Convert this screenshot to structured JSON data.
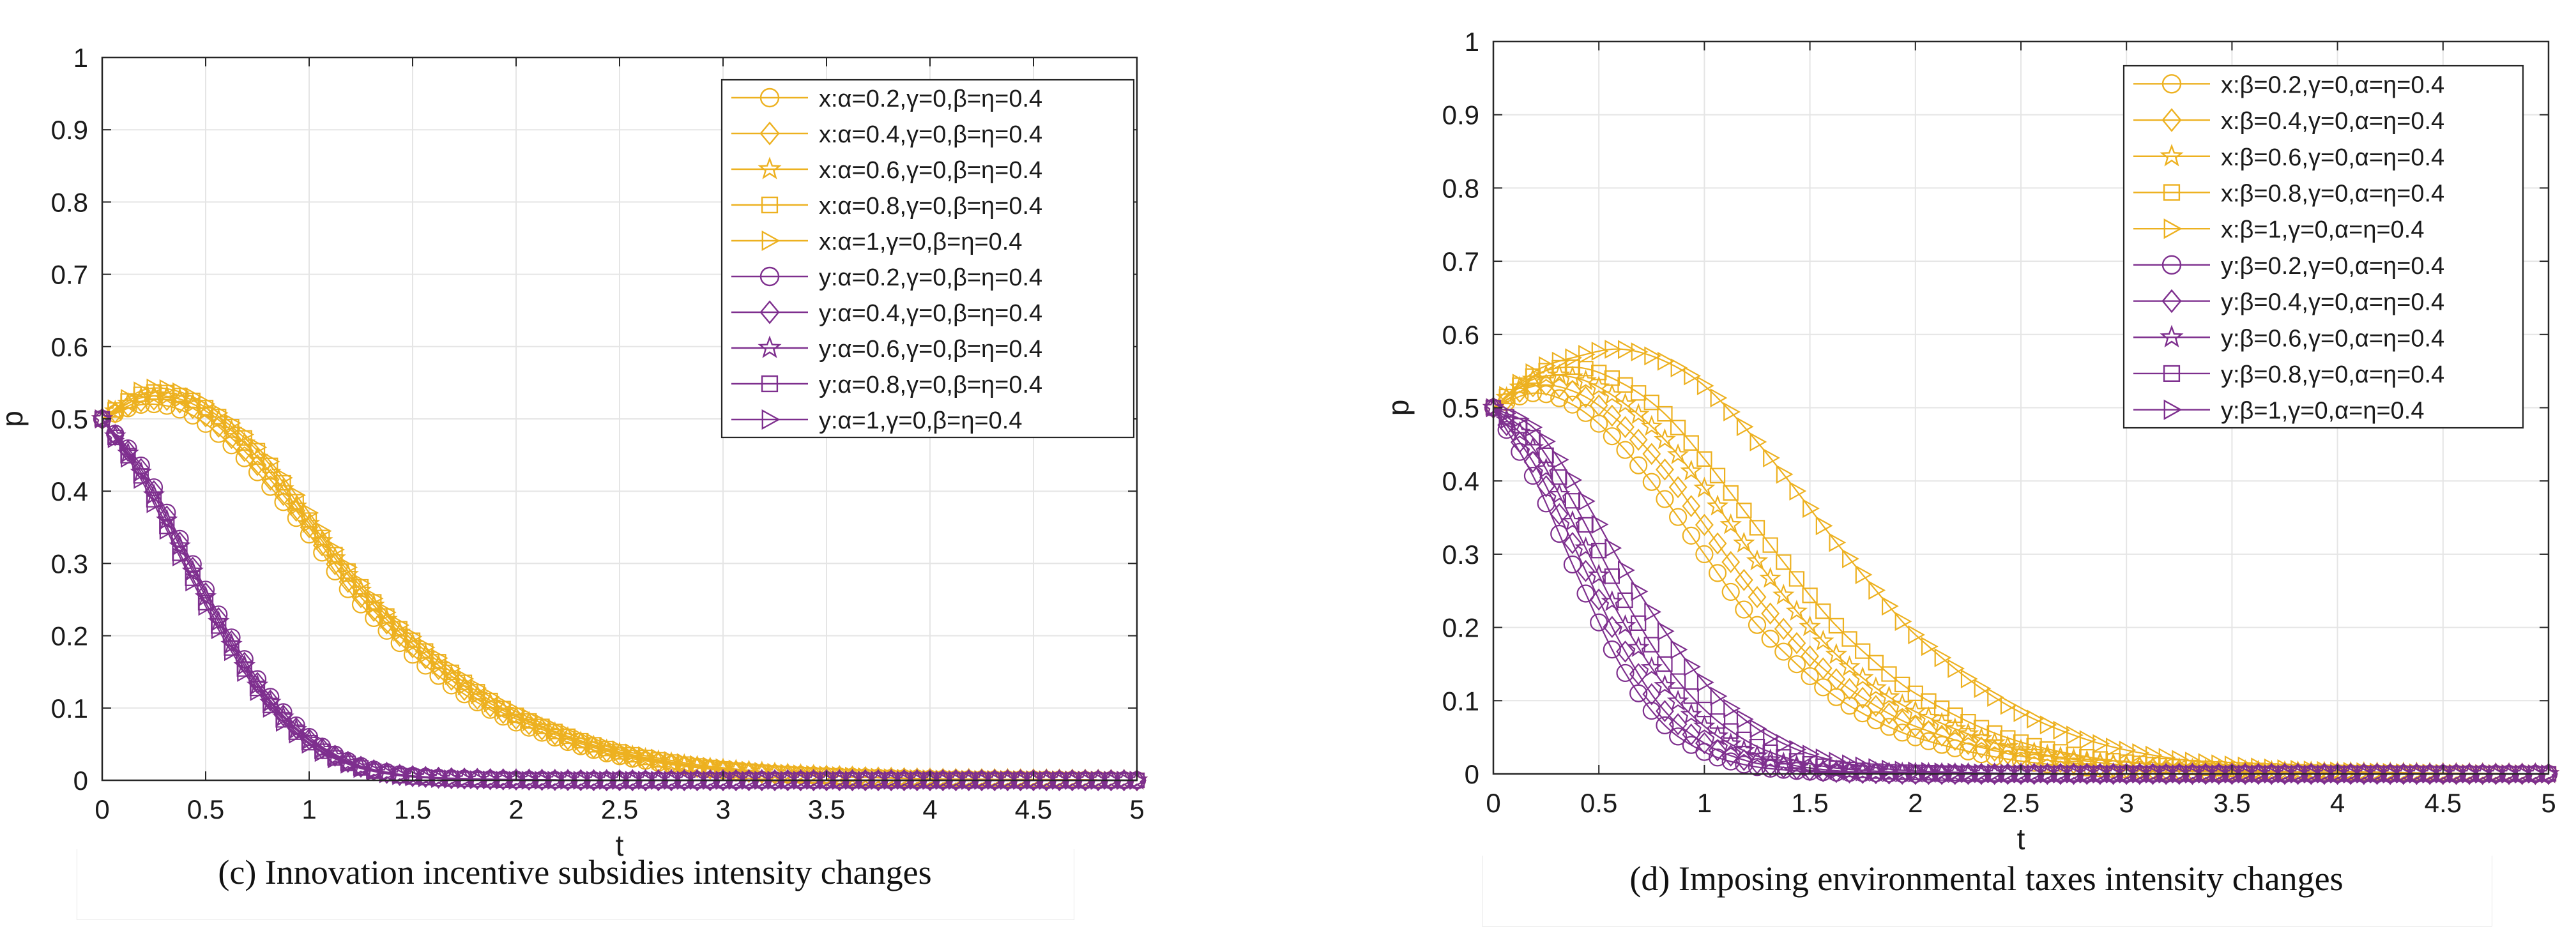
{
  "colors": {
    "x_series": "#EDB120",
    "y_series": "#7E2F8E",
    "grid": "#e5e5e5",
    "axis": "#262626"
  },
  "chart_data": [
    {
      "type": "line",
      "panel": "c",
      "caption": "(c) Innovation incentive subsidies intensity changes",
      "xlabel": "t",
      "ylabel": "p",
      "xlim": [
        0,
        5
      ],
      "ylim": [
        0,
        1
      ],
      "x_ticks": [
        "0",
        "0.5",
        "1",
        "1.5",
        "2",
        "2.5",
        "3",
        "3.5",
        "4",
        "4.5",
        "5"
      ],
      "y_ticks": [
        "0",
        "0.1",
        "0.2",
        "0.3",
        "0.4",
        "0.5",
        "0.6",
        "0.7",
        "0.8",
        "0.9",
        "1"
      ],
      "grid": true,
      "legend_position": "top-right",
      "x": [
        0,
        0.2,
        0.4,
        0.6,
        0.8,
        1.0,
        1.2,
        1.4,
        1.6,
        1.8,
        2.0,
        2.4,
        2.8,
        3.2,
        3.6,
        4.0,
        4.5,
        5.0
      ],
      "series": [
        {
          "name": "x:α=0.2,γ=0,β=η=0.4",
          "group": "x",
          "marker": "circle",
          "values": [
            0.5,
            0.52,
            0.51,
            0.47,
            0.41,
            0.34,
            0.26,
            0.2,
            0.15,
            0.11,
            0.08,
            0.04,
            0.02,
            0.01,
            0.005,
            0.002,
            0.001,
            0
          ]
        },
        {
          "name": "x:α=0.4,γ=0,β=η=0.4",
          "group": "x",
          "marker": "diamond",
          "values": [
            0.5,
            0.525,
            0.52,
            0.48,
            0.42,
            0.35,
            0.27,
            0.21,
            0.16,
            0.115,
            0.085,
            0.043,
            0.021,
            0.01,
            0.005,
            0.002,
            0.001,
            0
          ]
        },
        {
          "name": "x:α=0.6,γ=0,β=η=0.4",
          "group": "x",
          "marker": "star",
          "values": [
            0.5,
            0.53,
            0.525,
            0.49,
            0.43,
            0.355,
            0.28,
            0.215,
            0.165,
            0.12,
            0.088,
            0.045,
            0.022,
            0.011,
            0.005,
            0.002,
            0.001,
            0
          ]
        },
        {
          "name": "x:α=0.8,γ=0,β=η=0.4",
          "group": "x",
          "marker": "square",
          "values": [
            0.5,
            0.535,
            0.53,
            0.495,
            0.44,
            0.36,
            0.285,
            0.22,
            0.17,
            0.125,
            0.09,
            0.047,
            0.023,
            0.011,
            0.005,
            0.002,
            0.001,
            0
          ]
        },
        {
          "name": "x:α=1,γ=0,β=η=0.4",
          "group": "x",
          "marker": "triangle",
          "values": [
            0.5,
            0.54,
            0.535,
            0.5,
            0.445,
            0.37,
            0.29,
            0.225,
            0.175,
            0.13,
            0.095,
            0.05,
            0.025,
            0.012,
            0.006,
            0.002,
            0.001,
            0
          ]
        },
        {
          "name": "y:α=0.2,γ=0,β=η=0.4",
          "group": "y",
          "marker": "circle",
          "values": [
            0.5,
            0.43,
            0.32,
            0.21,
            0.12,
            0.06,
            0.025,
            0.01,
            0.004,
            0.002,
            0.001,
            0,
            0,
            0,
            0,
            0,
            0,
            0
          ]
        },
        {
          "name": "y:α=0.4,γ=0,β=η=0.4",
          "group": "y",
          "marker": "diamond",
          "values": [
            0.5,
            0.425,
            0.315,
            0.205,
            0.115,
            0.057,
            0.024,
            0.009,
            0.004,
            0.002,
            0.001,
            0,
            0,
            0,
            0,
            0,
            0,
            0
          ]
        },
        {
          "name": "y:α=0.6,γ=0,β=η=0.4",
          "group": "y",
          "marker": "star",
          "values": [
            0.5,
            0.42,
            0.31,
            0.2,
            0.112,
            0.055,
            0.023,
            0.009,
            0.003,
            0.001,
            0.001,
            0,
            0,
            0,
            0,
            0,
            0,
            0
          ]
        },
        {
          "name": "y:α=0.8,γ=0,β=η=0.4",
          "group": "y",
          "marker": "square",
          "values": [
            0.5,
            0.415,
            0.3,
            0.195,
            0.108,
            0.052,
            0.022,
            0.008,
            0.003,
            0.001,
            0,
            0,
            0,
            0,
            0,
            0,
            0,
            0
          ]
        },
        {
          "name": "y:α=1,γ=0,β=η=0.4",
          "group": "y",
          "marker": "triangle",
          "values": [
            0.5,
            0.41,
            0.295,
            0.19,
            0.104,
            0.05,
            0.021,
            0.008,
            0.003,
            0.001,
            0,
            0,
            0,
            0,
            0,
            0,
            0,
            0
          ]
        }
      ]
    },
    {
      "type": "line",
      "panel": "d",
      "caption": "(d) Imposing environmental taxes intensity changes",
      "xlabel": "t",
      "ylabel": "p",
      "xlim": [
        0,
        5
      ],
      "ylim": [
        0,
        1
      ],
      "x_ticks": [
        "0",
        "0.5",
        "1",
        "1.5",
        "2",
        "2.5",
        "3",
        "3.5",
        "4",
        "4.5",
        "5"
      ],
      "y_ticks": [
        "0",
        "0.1",
        "0.2",
        "0.3",
        "0.4",
        "0.5",
        "0.6",
        "0.7",
        "0.8",
        "0.9",
        "1"
      ],
      "grid": true,
      "legend_position": "top-right",
      "x": [
        0,
        0.2,
        0.4,
        0.6,
        0.8,
        1.0,
        1.2,
        1.4,
        1.6,
        1.8,
        2.0,
        2.4,
        2.8,
        3.2,
        3.6,
        4.0,
        4.5,
        5.0
      ],
      "series": [
        {
          "name": "x:β=0.2,γ=0,α=η=0.4",
          "group": "x",
          "marker": "circle",
          "values": [
            0.5,
            0.52,
            0.5,
            0.45,
            0.38,
            0.3,
            0.22,
            0.16,
            0.11,
            0.075,
            0.05,
            0.022,
            0.009,
            0.004,
            0.002,
            0.001,
            0,
            0
          ]
        },
        {
          "name": "x:β=0.4,γ=0,α=η=0.4",
          "group": "x",
          "marker": "diamond",
          "values": [
            0.5,
            0.53,
            0.52,
            0.48,
            0.42,
            0.34,
            0.26,
            0.19,
            0.135,
            0.095,
            0.065,
            0.03,
            0.013,
            0.006,
            0.003,
            0.001,
            0,
            0
          ]
        },
        {
          "name": "x:β=0.6,γ=0,α=η=0.4",
          "group": "x",
          "marker": "star",
          "values": [
            0.5,
            0.54,
            0.54,
            0.51,
            0.46,
            0.39,
            0.31,
            0.235,
            0.17,
            0.12,
            0.085,
            0.04,
            0.018,
            0.008,
            0.004,
            0.002,
            0.001,
            0
          ]
        },
        {
          "name": "x:β=0.8,γ=0,α=η=0.4",
          "group": "x",
          "marker": "square",
          "values": [
            0.5,
            0.545,
            0.555,
            0.535,
            0.495,
            0.43,
            0.355,
            0.28,
            0.21,
            0.155,
            0.11,
            0.053,
            0.024,
            0.011,
            0.005,
            0.002,
            0.001,
            0
          ]
        },
        {
          "name": "x:β=1,γ=0,α=η=0.4",
          "group": "x",
          "marker": "triangle",
          "values": [
            0.5,
            0.55,
            0.57,
            0.58,
            0.565,
            0.53,
            0.47,
            0.4,
            0.325,
            0.255,
            0.19,
            0.1,
            0.048,
            0.022,
            0.01,
            0.004,
            0.001,
            0
          ]
        },
        {
          "name": "y:β=0.2,γ=0,α=η=0.4",
          "group": "y",
          "marker": "circle",
          "values": [
            0.5,
            0.4,
            0.27,
            0.15,
            0.07,
            0.03,
            0.012,
            0.005,
            0.002,
            0.001,
            0,
            0,
            0,
            0,
            0,
            0,
            0,
            0
          ]
        },
        {
          "name": "y:β=0.4,γ=0,α=η=0.4",
          "group": "y",
          "marker": "diamond",
          "values": [
            0.5,
            0.42,
            0.3,
            0.18,
            0.09,
            0.042,
            0.018,
            0.008,
            0.003,
            0.001,
            0,
            0,
            0,
            0,
            0,
            0,
            0,
            0
          ]
        },
        {
          "name": "y:β=0.6,γ=0,α=η=0.4",
          "group": "y",
          "marker": "star",
          "values": [
            0.5,
            0.44,
            0.33,
            0.215,
            0.125,
            0.065,
            0.03,
            0.013,
            0.005,
            0.002,
            0.001,
            0,
            0,
            0,
            0,
            0,
            0,
            0
          ]
        },
        {
          "name": "y:β=0.8,γ=0,α=η=0.4",
          "group": "y",
          "marker": "square",
          "values": [
            0.5,
            0.455,
            0.36,
            0.25,
            0.155,
            0.088,
            0.045,
            0.021,
            0.009,
            0.004,
            0.002,
            0,
            0,
            0,
            0,
            0,
            0,
            0
          ]
        },
        {
          "name": "y:β=1,γ=0,α=η=0.4",
          "group": "y",
          "marker": "triangle",
          "values": [
            0.5,
            0.47,
            0.39,
            0.29,
            0.2,
            0.125,
            0.072,
            0.038,
            0.019,
            0.009,
            0.004,
            0.001,
            0,
            0,
            0,
            0,
            0,
            0
          ]
        }
      ]
    }
  ]
}
